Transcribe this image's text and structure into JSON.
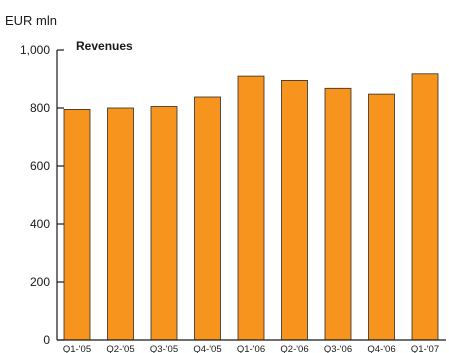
{
  "chart_data": {
    "type": "bar",
    "unit_label": "EUR mln",
    "title": "Revenues",
    "categories": [
      "Q1-'05",
      "Q2-'05",
      "Q3-'05",
      "Q4-'05",
      "Q1-'06",
      "Q2-'06",
      "Q3-'06",
      "Q4-'06",
      "Q1-'07"
    ],
    "values": [
      795,
      800,
      805,
      838,
      910,
      895,
      868,
      848,
      918
    ],
    "ylim": [
      0,
      1000
    ],
    "yticks": [
      0,
      200,
      400,
      600,
      800,
      1000
    ],
    "ytick_labels": [
      "0",
      "200",
      "400",
      "600",
      "800",
      "1,000"
    ],
    "grid": false,
    "colors": {
      "bar_fill": "#F7941D",
      "bar_stroke": "#2b2b2b",
      "axis": "#1a1a1a"
    }
  }
}
